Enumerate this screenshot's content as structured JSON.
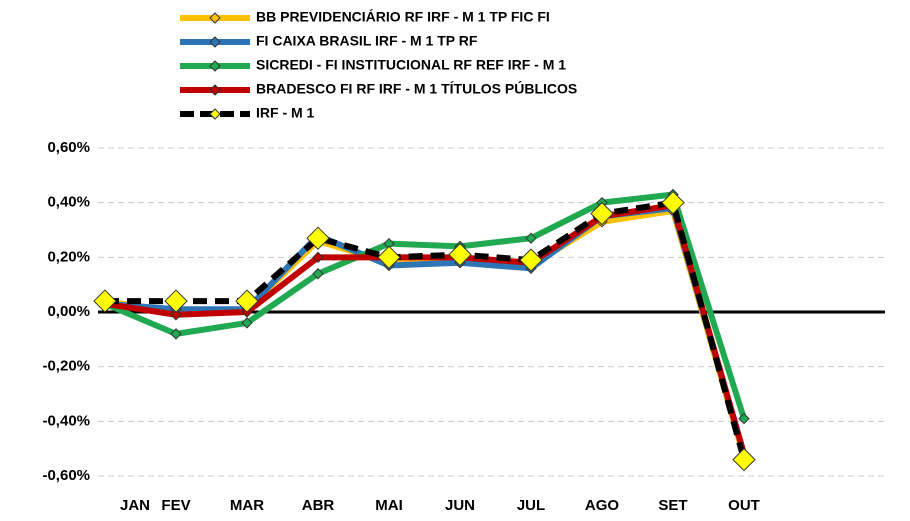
{
  "chart_data": {
    "type": "line",
    "categories": [
      "JAN",
      "FEV",
      "MAR",
      "ABR",
      "MAI",
      "JUN",
      "JUL",
      "AGO",
      "SET",
      "OUT"
    ],
    "series": [
      {
        "name": "BB PREVIDENCIÁRIO RF IRF - M 1 TP FIC FI",
        "color": "#ffc000",
        "values": [
          0.04,
          0.0,
          0.01,
          0.26,
          0.18,
          0.19,
          0.17,
          0.33,
          0.37,
          -0.53
        ]
      },
      {
        "name": "FI CAIXA BRASIL IRF - M 1 TP RF",
        "color": "#2e75b6",
        "values": [
          0.03,
          0.01,
          0.01,
          0.28,
          0.17,
          0.18,
          0.16,
          0.35,
          0.38,
          -0.52
        ]
      },
      {
        "name": "SICREDI - FI INSTITUCIONAL RF REF IRF - M 1",
        "color": "#21a952",
        "values": [
          0.03,
          -0.08,
          -0.04,
          0.14,
          0.25,
          0.24,
          0.27,
          0.4,
          0.43,
          -0.39
        ]
      },
      {
        "name": "BRADESCO FI RF IRF - M 1 TÍTULOS PÚBLICOS",
        "color": "#c00000",
        "values": [
          0.03,
          -0.01,
          0.0,
          0.2,
          0.2,
          0.2,
          0.18,
          0.35,
          0.39,
          -0.52
        ]
      },
      {
        "name": "IRF - M 1",
        "color": "#000000",
        "marker_color": "#ffff00",
        "dashed": true,
        "values": [
          0.04,
          0.04,
          0.04,
          0.27,
          0.2,
          0.21,
          0.19,
          0.36,
          0.4,
          -0.54
        ]
      }
    ],
    "ylim": [
      -0.6,
      0.6
    ],
    "yticks": [
      {
        "value": -0.6,
        "label": "-0,60%"
      },
      {
        "value": -0.4,
        "label": "-0,40%"
      },
      {
        "value": -0.2,
        "label": "-0,20%"
      },
      {
        "value": 0,
        "label": "0,00%"
      },
      {
        "value": 0.2,
        "label": "0,20%"
      },
      {
        "value": 0.4,
        "label": "0,40%"
      },
      {
        "value": 0.6,
        "label": "0,60%"
      }
    ],
    "grid": true
  }
}
